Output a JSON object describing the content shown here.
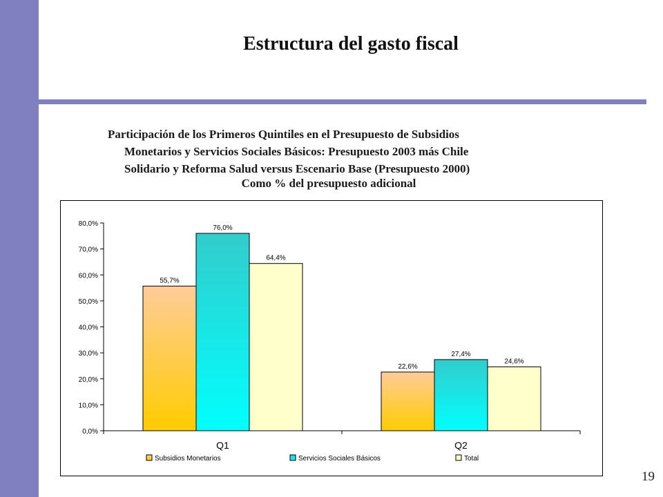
{
  "slide": {
    "title": "Estructura del gasto fiscal",
    "subtitle_lines": [
      "Participación de los Primeros Quintiles en el Presupuesto de Subsidios",
      "Monetarios y Servicios Sociales Básicos:  Presupuesto 2003 más Chile",
      "Solidario y Reforma Salud versus Escenario Base (Presupuesto 2000)"
    ],
    "chart_subtitle": "Como % del presupuesto adicional",
    "page_number": "19"
  },
  "colors": {
    "band": "#8080c0",
    "series": [
      {
        "top": "#ffcc99",
        "bottom": "#ffcc00"
      },
      {
        "top": "#33cccc",
        "bottom": "#00ffff"
      },
      {
        "top": "#ffffcc",
        "bottom": "#ffffcc"
      }
    ]
  },
  "chart_data": {
    "type": "bar",
    "title": "",
    "xlabel": "",
    "ylabel": "",
    "categories": [
      "Q1",
      "Q2"
    ],
    "series": [
      {
        "name": "Subsidios Monetarios",
        "values": [
          55.7,
          22.6
        ],
        "labels": [
          "55,7%",
          "22,6%"
        ]
      },
      {
        "name": "Servicios Sociales Básicos",
        "values": [
          76.0,
          27.4
        ],
        "labels": [
          "76,0%",
          "27,4%"
        ]
      },
      {
        "name": "Total",
        "values": [
          64.4,
          24.6
        ],
        "labels": [
          "64,4%",
          "24,6%"
        ]
      }
    ],
    "ylim": [
      0,
      80
    ],
    "yticks": [
      0,
      10,
      20,
      30,
      40,
      50,
      60,
      70,
      80
    ],
    "ytick_labels": [
      "0,0%",
      "10,0%",
      "20,0%",
      "30,0%",
      "40,0%",
      "50,0%",
      "60,0%",
      "70,0%",
      "80,0%"
    ],
    "grid": false,
    "legend_position": "bottom"
  }
}
